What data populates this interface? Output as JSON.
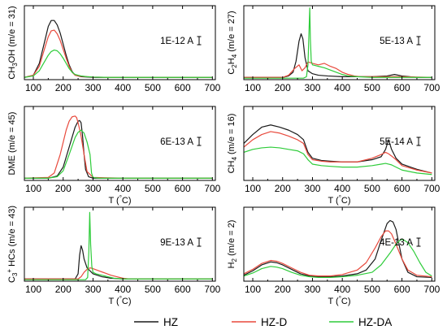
{
  "colors": {
    "HZ": "#1a1a1a",
    "HZ-D": "#e8493c",
    "HZ-DA": "#2ecc3a"
  },
  "legend": [
    {
      "name": "HZ",
      "color": "#1a1a1a"
    },
    {
      "name": "HZ-D",
      "color": "#e8493c"
    },
    {
      "name": "HZ-DA",
      "color": "#2ecc3a"
    }
  ],
  "chart_data": [
    {
      "type": "line",
      "ylabel": "CH3OH (m/e = 31)",
      "xlabel": "T (°C)",
      "scale_label": "1E-12 A",
      "xlim": [
        70,
        710
      ],
      "ylim": [
        0,
        1
      ],
      "x_ticks": [
        100,
        200,
        300,
        400,
        500,
        600,
        700
      ],
      "show_xlabel": false,
      "grid": false,
      "series": [
        {
          "name": "HZ",
          "x": [
            70,
            100,
            120,
            140,
            150,
            160,
            170,
            180,
            190,
            200,
            210,
            220,
            230,
            240,
            250,
            260,
            280,
            300,
            350,
            400,
            500,
            600,
            700
          ],
          "y": [
            0.03,
            0.06,
            0.22,
            0.55,
            0.72,
            0.8,
            0.8,
            0.74,
            0.63,
            0.48,
            0.33,
            0.2,
            0.11,
            0.06,
            0.05,
            0.04,
            0.035,
            0.03,
            0.03,
            0.03,
            0.03,
            0.03,
            0.03
          ]
        },
        {
          "name": "HZ-D",
          "x": [
            70,
            100,
            120,
            140,
            150,
            160,
            170,
            180,
            190,
            200,
            210,
            220,
            230,
            240,
            250,
            260,
            280,
            300,
            350,
            400,
            500,
            600,
            700
          ],
          "y": [
            0.03,
            0.06,
            0.18,
            0.45,
            0.58,
            0.66,
            0.67,
            0.62,
            0.53,
            0.41,
            0.29,
            0.18,
            0.1,
            0.06,
            0.05,
            0.045,
            0.04,
            0.035,
            0.03,
            0.03,
            0.03,
            0.03,
            0.03
          ]
        },
        {
          "name": "HZ-DA",
          "x": [
            70,
            100,
            120,
            140,
            150,
            160,
            170,
            180,
            190,
            200,
            210,
            220,
            230,
            240,
            250,
            260,
            280,
            300,
            350,
            400,
            500,
            600,
            700
          ],
          "y": [
            0.03,
            0.05,
            0.12,
            0.26,
            0.33,
            0.38,
            0.4,
            0.39,
            0.35,
            0.29,
            0.22,
            0.15,
            0.1,
            0.07,
            0.06,
            0.05,
            0.04,
            0.035,
            0.03,
            0.03,
            0.03,
            0.03,
            0.03
          ]
        }
      ]
    },
    {
      "type": "line",
      "ylabel": "C2H4 (m/e = 27)",
      "xlabel": "T (°C)",
      "scale_label": "5E-13 A",
      "xlim": [
        70,
        710
      ],
      "ylim": [
        0,
        1
      ],
      "x_ticks": [
        100,
        200,
        300,
        400,
        500,
        600,
        700
      ],
      "show_xlabel": false,
      "grid": false,
      "series": [
        {
          "name": "HZ",
          "x": [
            70,
            200,
            220,
            235,
            245,
            255,
            262,
            268,
            275,
            285,
            300,
            320,
            350,
            400,
            450,
            500,
            550,
            575,
            600,
            650,
            700
          ],
          "y": [
            0.03,
            0.03,
            0.05,
            0.1,
            0.25,
            0.52,
            0.62,
            0.55,
            0.3,
            0.12,
            0.08,
            0.06,
            0.05,
            0.04,
            0.04,
            0.04,
            0.05,
            0.07,
            0.05,
            0.03,
            0.03
          ]
        },
        {
          "name": "HZ-D",
          "x": [
            70,
            200,
            220,
            240,
            255,
            265,
            275,
            285,
            300,
            320,
            340,
            360,
            380,
            400,
            420,
            440,
            460,
            500,
            600,
            700
          ],
          "y": [
            0.03,
            0.03,
            0.06,
            0.15,
            0.2,
            0.12,
            0.16,
            0.24,
            0.22,
            0.2,
            0.22,
            0.18,
            0.15,
            0.1,
            0.07,
            0.05,
            0.04,
            0.04,
            0.04,
            0.03
          ]
        },
        {
          "name": "HZ-DA",
          "x": [
            70,
            270,
            280,
            285,
            288,
            291,
            293,
            296,
            300,
            310,
            320,
            340,
            360,
            380,
            400,
            420,
            450,
            500,
            600,
            700
          ],
          "y": [
            0.02,
            0.02,
            0.04,
            0.2,
            0.6,
            0.97,
            0.55,
            0.25,
            0.2,
            0.19,
            0.18,
            0.16,
            0.13,
            0.1,
            0.07,
            0.05,
            0.04,
            0.03,
            0.03,
            0.03
          ]
        }
      ]
    },
    {
      "type": "line",
      "ylabel": "DME (m/e = 45)",
      "xlabel": "T (°C)",
      "scale_label": "6E-13 A",
      "xlim": [
        70,
        710
      ],
      "ylim": [
        0,
        1
      ],
      "x_ticks": [
        100,
        200,
        300,
        400,
        500,
        600,
        700
      ],
      "show_xlabel": true,
      "grid": false,
      "series": [
        {
          "name": "HZ",
          "x": [
            70,
            150,
            180,
            200,
            220,
            240,
            250,
            255,
            260,
            265,
            270,
            275,
            285,
            300,
            400,
            500,
            600,
            700
          ],
          "y": [
            0.03,
            0.03,
            0.06,
            0.18,
            0.45,
            0.72,
            0.8,
            0.81,
            0.78,
            0.6,
            0.35,
            0.15,
            0.05,
            0.03,
            0.03,
            0.03,
            0.03,
            0.03
          ]
        },
        {
          "name": "HZ-D",
          "x": [
            70,
            150,
            170,
            190,
            210,
            220,
            230,
            240,
            245,
            250,
            260,
            270,
            280,
            300,
            400,
            500,
            600,
            700
          ],
          "y": [
            0.03,
            0.04,
            0.1,
            0.35,
            0.68,
            0.8,
            0.86,
            0.87,
            0.85,
            0.78,
            0.6,
            0.35,
            0.12,
            0.04,
            0.03,
            0.03,
            0.03,
            0.03
          ]
        },
        {
          "name": "HZ-DA",
          "x": [
            70,
            150,
            180,
            200,
            220,
            240,
            250,
            260,
            270,
            280,
            290,
            295,
            300,
            320,
            400,
            500,
            600,
            700
          ],
          "y": [
            0.03,
            0.03,
            0.05,
            0.13,
            0.35,
            0.58,
            0.65,
            0.68,
            0.64,
            0.52,
            0.35,
            0.1,
            0.04,
            0.03,
            0.03,
            0.03,
            0.03,
            0.03
          ]
        }
      ]
    },
    {
      "type": "line",
      "ylabel": "CH4 (m/e = 16)",
      "xlabel": "T (°C)",
      "scale_label": "5E-14 A",
      "xlim": [
        70,
        710
      ],
      "ylim": [
        0,
        1
      ],
      "x_ticks": [
        100,
        200,
        300,
        400,
        500,
        600,
        700
      ],
      "show_xlabel": true,
      "grid": false,
      "series": [
        {
          "name": "HZ",
          "x": [
            70,
            100,
            130,
            160,
            190,
            220,
            250,
            270,
            285,
            300,
            330,
            360,
            400,
            450,
            500,
            530,
            545,
            555,
            565,
            580,
            600,
            650,
            700
          ],
          "y": [
            0.5,
            0.62,
            0.72,
            0.75,
            0.72,
            0.68,
            0.62,
            0.55,
            0.38,
            0.3,
            0.27,
            0.26,
            0.25,
            0.25,
            0.28,
            0.32,
            0.42,
            0.55,
            0.42,
            0.3,
            0.22,
            0.15,
            0.1
          ]
        },
        {
          "name": "HZ-D",
          "x": [
            70,
            100,
            130,
            160,
            190,
            220,
            250,
            270,
            285,
            300,
            330,
            360,
            400,
            450,
            500,
            530,
            545,
            555,
            565,
            580,
            600,
            650,
            700
          ],
          "y": [
            0.45,
            0.55,
            0.62,
            0.66,
            0.64,
            0.6,
            0.55,
            0.5,
            0.35,
            0.28,
            0.26,
            0.25,
            0.25,
            0.25,
            0.3,
            0.35,
            0.38,
            0.36,
            0.33,
            0.28,
            0.2,
            0.14,
            0.1
          ]
        },
        {
          "name": "HZ-DA",
          "x": [
            70,
            100,
            130,
            160,
            190,
            220,
            250,
            270,
            285,
            300,
            330,
            360,
            400,
            450,
            500,
            530,
            545,
            555,
            565,
            580,
            600,
            650,
            700
          ],
          "y": [
            0.38,
            0.42,
            0.44,
            0.45,
            0.44,
            0.42,
            0.4,
            0.36,
            0.28,
            0.22,
            0.2,
            0.19,
            0.18,
            0.18,
            0.2,
            0.22,
            0.23,
            0.22,
            0.21,
            0.18,
            0.14,
            0.1,
            0.08
          ]
        }
      ]
    },
    {
      "type": "line",
      "ylabel": "C3+ HCs (m/e = 43)",
      "xlabel": "T (°C)",
      "scale_label": "9E-13 A",
      "xlim": [
        70,
        710
      ],
      "ylim": [
        0,
        1
      ],
      "x_ticks": [
        100,
        200,
        300,
        400,
        500,
        600,
        700
      ],
      "show_xlabel": true,
      "grid": false,
      "series": [
        {
          "name": "HZ",
          "x": [
            70,
            240,
            250,
            255,
            260,
            265,
            270,
            280,
            300,
            330,
            360,
            400,
            500,
            600,
            700
          ],
          "y": [
            0.03,
            0.03,
            0.1,
            0.35,
            0.48,
            0.42,
            0.3,
            0.18,
            0.1,
            0.06,
            0.04,
            0.03,
            0.03,
            0.03,
            0.03
          ]
        },
        {
          "name": "HZ-D",
          "x": [
            70,
            250,
            260,
            270,
            280,
            290,
            300,
            320,
            340,
            360,
            380,
            400,
            420,
            500,
            600,
            700
          ],
          "y": [
            0.03,
            0.03,
            0.06,
            0.12,
            0.16,
            0.18,
            0.17,
            0.14,
            0.11,
            0.08,
            0.06,
            0.04,
            0.03,
            0.03,
            0.03,
            0.03
          ]
        },
        {
          "name": "HZ-DA",
          "x": [
            70,
            275,
            282,
            286,
            289,
            292,
            296,
            300,
            310,
            330,
            350,
            370,
            400,
            500,
            600,
            700
          ],
          "y": [
            0.02,
            0.02,
            0.05,
            0.4,
            0.93,
            0.5,
            0.2,
            0.12,
            0.1,
            0.08,
            0.06,
            0.04,
            0.03,
            0.03,
            0.03,
            0.03
          ]
        }
      ]
    },
    {
      "type": "line",
      "ylabel": "H2 (m/e = 2)",
      "xlabel": "T (°C)",
      "scale_label": "4E-13 A",
      "xlim": [
        70,
        710
      ],
      "ylim": [
        0,
        1
      ],
      "x_ticks": [
        100,
        200,
        300,
        400,
        500,
        600,
        700
      ],
      "show_xlabel": true,
      "grid": false,
      "series": [
        {
          "name": "HZ",
          "x": [
            70,
            100,
            130,
            160,
            180,
            200,
            230,
            260,
            290,
            320,
            360,
            400,
            450,
            480,
            510,
            530,
            550,
            560,
            570,
            580,
            590,
            600,
            620,
            650,
            700
          ],
          "y": [
            0.08,
            0.14,
            0.22,
            0.26,
            0.25,
            0.22,
            0.16,
            0.1,
            0.07,
            0.06,
            0.06,
            0.07,
            0.1,
            0.15,
            0.3,
            0.55,
            0.78,
            0.82,
            0.8,
            0.7,
            0.5,
            0.3,
            0.12,
            0.06,
            0.05
          ]
        },
        {
          "name": "HZ-D",
          "x": [
            70,
            100,
            130,
            160,
            180,
            200,
            230,
            260,
            290,
            320,
            360,
            400,
            450,
            480,
            510,
            530,
            545,
            555,
            565,
            580,
            600,
            620,
            650,
            700
          ],
          "y": [
            0.1,
            0.16,
            0.24,
            0.28,
            0.27,
            0.24,
            0.18,
            0.12,
            0.08,
            0.07,
            0.07,
            0.09,
            0.15,
            0.25,
            0.45,
            0.6,
            0.68,
            0.68,
            0.64,
            0.5,
            0.3,
            0.15,
            0.08,
            0.06
          ]
        },
        {
          "name": "HZ-DA",
          "x": [
            70,
            100,
            130,
            160,
            180,
            200,
            230,
            260,
            290,
            320,
            360,
            400,
            450,
            500,
            530,
            560,
            580,
            595,
            605,
            620,
            640,
            660,
            680,
            700
          ],
          "y": [
            0.07,
            0.11,
            0.17,
            0.2,
            0.19,
            0.17,
            0.12,
            0.08,
            0.06,
            0.05,
            0.05,
            0.06,
            0.08,
            0.12,
            0.22,
            0.38,
            0.5,
            0.56,
            0.56,
            0.52,
            0.4,
            0.25,
            0.12,
            0.07
          ]
        }
      ]
    }
  ]
}
